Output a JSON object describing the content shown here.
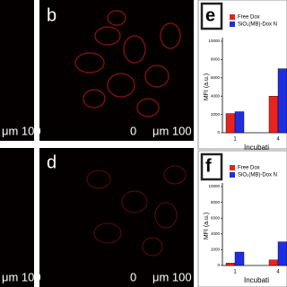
{
  "panels": {
    "a_scale": "μm 100",
    "b_label": "b",
    "b_scale_zero": "0",
    "b_scale": "μm 100",
    "c_scale": "μm 100",
    "d_label": "d",
    "d_scale_zero": "0",
    "d_scale": "μm 100"
  },
  "chart_data": [
    {
      "type": "bar",
      "panel_label": "e",
      "y_label": "MFI (a.u.)",
      "x_label": "Incubati",
      "categories": [
        "1",
        "4"
      ],
      "series": [
        {
          "name": "Free Dox",
          "color": "#e8231f",
          "values": [
            2100,
            4000
          ]
        },
        {
          "name": "SiO₂(MB)-Dox N",
          "color": "#1f2ee0",
          "values": [
            2300,
            7000
          ]
        }
      ],
      "ylim": [
        0,
        10000
      ],
      "yticks": [
        0,
        2000,
        4000,
        6000,
        8000,
        10000
      ]
    },
    {
      "type": "bar",
      "panel_label": "f",
      "y_label": "MFI (a.u.)",
      "x_label": "Incubati",
      "categories": [
        "1",
        "4"
      ],
      "series": [
        {
          "name": "Free Dox",
          "color": "#e8231f",
          "values": [
            300,
            700
          ]
        },
        {
          "name": "SiO₂(MB)-Dox N",
          "color": "#1f2ee0",
          "values": [
            1700,
            3000
          ]
        }
      ],
      "ylim": [
        0,
        10000
      ],
      "yticks": [
        0,
        2000,
        4000,
        6000,
        8000,
        10000
      ]
    }
  ]
}
